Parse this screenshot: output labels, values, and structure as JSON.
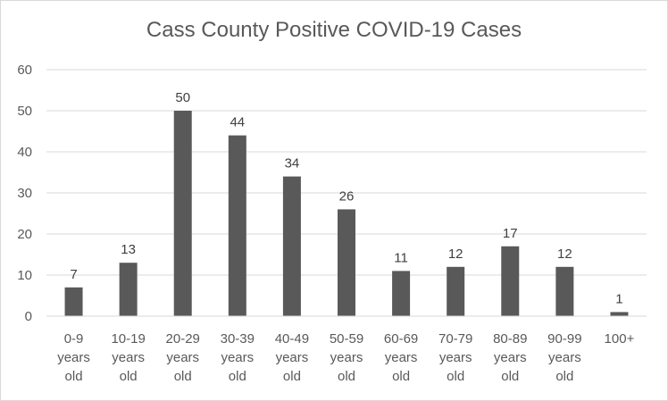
{
  "chart_data": {
    "type": "bar",
    "title": "Cass County Positive COVID-19 Cases",
    "xlabel": "",
    "ylabel": "",
    "categories": [
      "0-9 years old",
      "10-19 years old",
      "20-29 years old",
      "30-39 years old",
      "40-49 years old",
      "50-59 years old",
      "60-69 years old",
      "70-79 years old",
      "80-89 years old",
      "90-99 years old",
      "100+"
    ],
    "values": [
      7,
      13,
      50,
      44,
      34,
      26,
      11,
      12,
      17,
      12,
      1
    ],
    "ylim": [
      0,
      60
    ],
    "yticks": [
      "0",
      "10",
      "20",
      "30",
      "40",
      "50",
      "60"
    ],
    "grid": true,
    "legend": "none",
    "bar_color": "#595959"
  }
}
